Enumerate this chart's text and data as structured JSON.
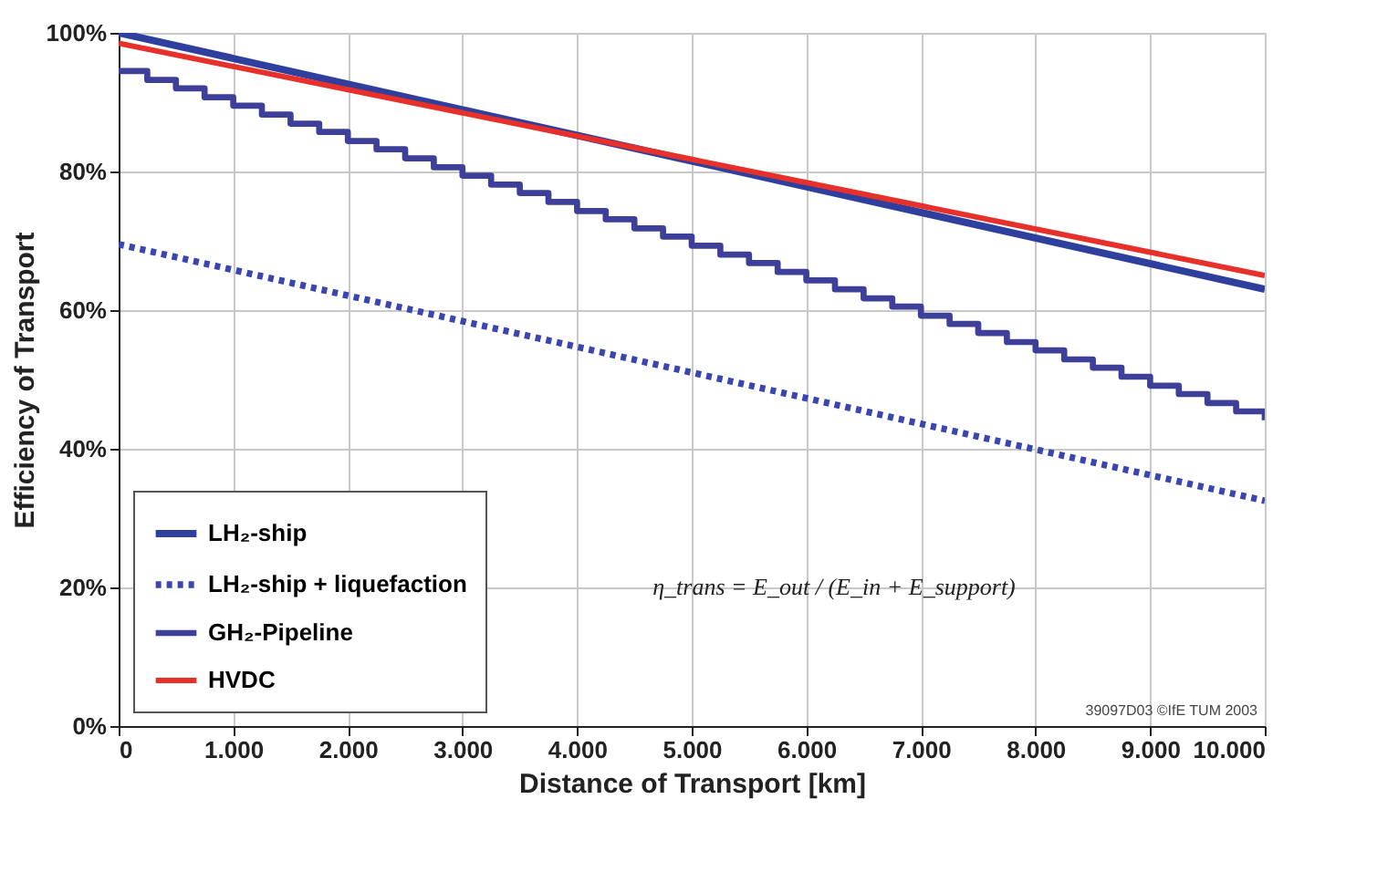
{
  "chart_data": {
    "type": "line",
    "xlabel": "Distance of Transport [km]",
    "ylabel": "Efficiency of Transport",
    "xlim": [
      0,
      10000
    ],
    "xticks": [
      0,
      {
        "value": 1000,
        "label": "1.000"
      },
      {
        "value": 2000,
        "label": "2.000"
      },
      {
        "value": 3000,
        "label": "3.000"
      },
      {
        "value": 4000,
        "label": "4.000"
      },
      {
        "value": 5000,
        "label": "5.000"
      },
      {
        "value": 6000,
        "label": "6.000"
      },
      {
        "value": 7000,
        "label": "7.000"
      },
      {
        "value": 8000,
        "label": "8.000"
      },
      {
        "value": 9000,
        "label": "9.000"
      },
      {
        "value": 10000,
        "label": "10.000"
      }
    ],
    "ylim": [
      0,
      100
    ],
    "yticks": [
      {
        "value": 0,
        "label": "0%"
      },
      {
        "value": 20,
        "label": "20%"
      },
      {
        "value": 40,
        "label": "40%"
      },
      {
        "value": 60,
        "label": "60%"
      },
      {
        "value": 80,
        "label": "80%"
      },
      {
        "value": 100,
        "label": "100%"
      }
    ],
    "grid": true,
    "legend": "bottom left",
    "series": [
      {
        "name": "LH₂-ship",
        "color": "#2e3f9e",
        "line_style": "solid",
        "x": [
          0,
          10000
        ],
        "values": [
          100,
          63
        ]
      },
      {
        "name": "LH₂-ship + liquefaction",
        "color": "#3a45b0",
        "line_style": "dotted",
        "x": [
          0,
          10000
        ],
        "values": [
          69.5,
          32.5
        ]
      },
      {
        "name": "GH₂-Pipeline",
        "color": "#3d3f99",
        "line_style": "solid",
        "type": "step",
        "x": [
          0,
          250,
          500,
          750,
          1000,
          1250,
          1500,
          1750,
          2000,
          2250,
          2500,
          2750,
          3000,
          3250,
          3500,
          3750,
          4000,
          4250,
          4500,
          4750,
          5000,
          5250,
          5500,
          5750,
          6000,
          6250,
          6500,
          6750,
          7000,
          7250,
          7500,
          7750,
          8000,
          8250,
          8500,
          8750,
          9000,
          9250,
          9500,
          9750,
          10000
        ],
        "values": [
          94.5,
          93.2,
          92.0,
          90.7,
          89.5,
          88.2,
          86.9,
          85.7,
          84.4,
          83.2,
          81.9,
          80.6,
          79.4,
          78.1,
          76.9,
          75.6,
          74.3,
          73.1,
          71.8,
          70.6,
          69.3,
          68.0,
          66.8,
          65.5,
          64.3,
          63.0,
          61.7,
          60.5,
          59.2,
          58.0,
          56.7,
          55.4,
          54.2,
          52.9,
          51.7,
          50.4,
          49.1,
          47.9,
          46.6,
          45.4,
          44.1
        ]
      },
      {
        "name": "HVDC",
        "color": "#e8302a",
        "line_style": "solid",
        "x": [
          0,
          10000
        ],
        "values": [
          98.5,
          65
        ]
      }
    ],
    "annotations": [
      "η_trans = E_out / (E_in + E_support)",
      "39097D03 ©IfE TUM 2003"
    ]
  }
}
